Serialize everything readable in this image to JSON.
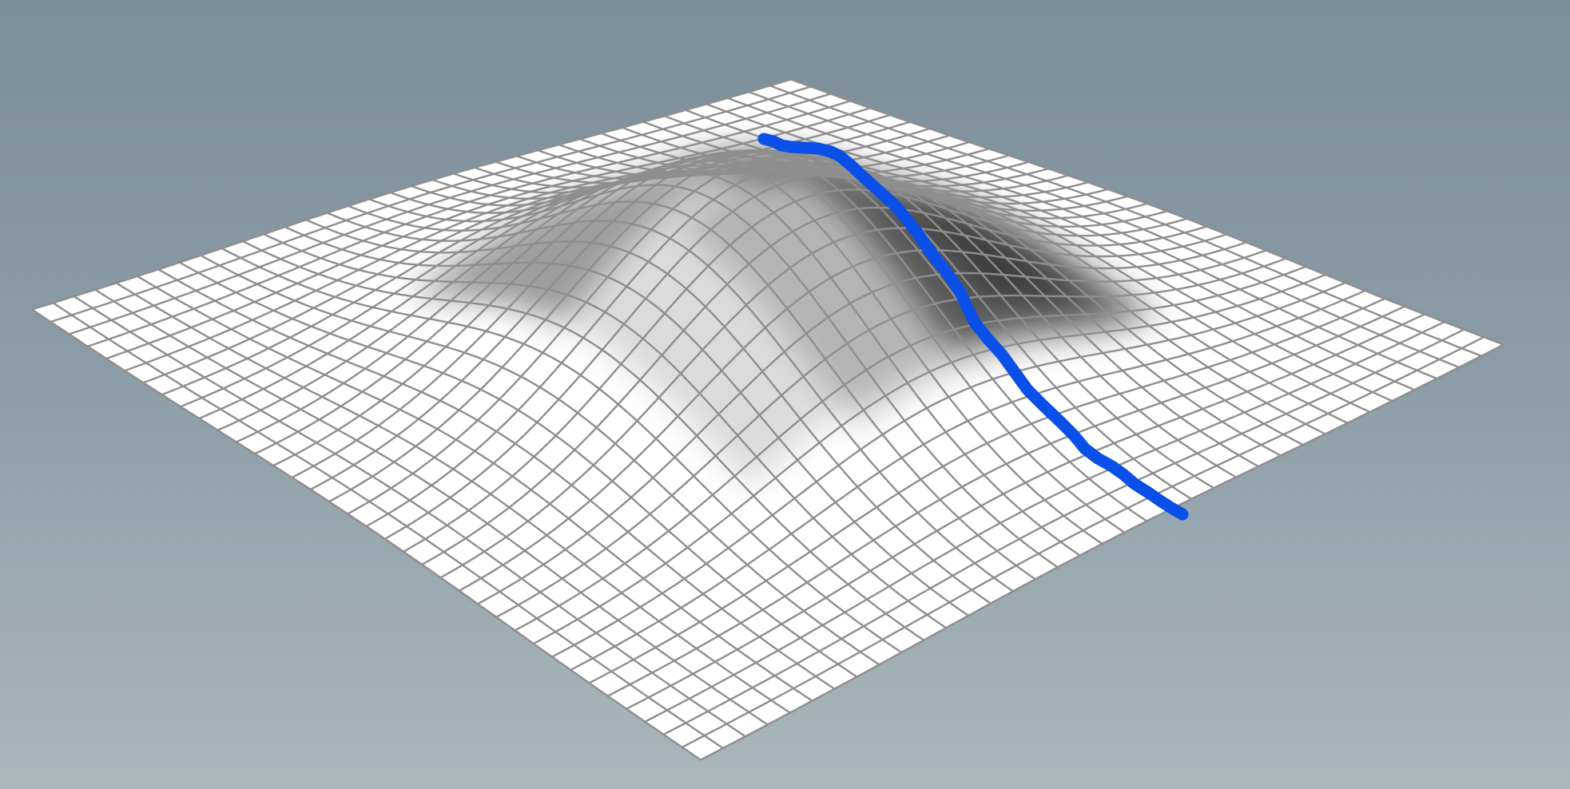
{
  "scene": {
    "surface": {
      "shape": "gaussian-hill",
      "mesh_color": "#ffffff",
      "grid_color": "#8e8e8e",
      "shadow_color": "#000000",
      "grid_divisions": 36
    },
    "path": {
      "color": "#0a4fe8",
      "description_icon": "descent-path"
    },
    "background": {
      "top_color": "#7a8e99",
      "bottom_color": "#a9b7bb"
    }
  }
}
